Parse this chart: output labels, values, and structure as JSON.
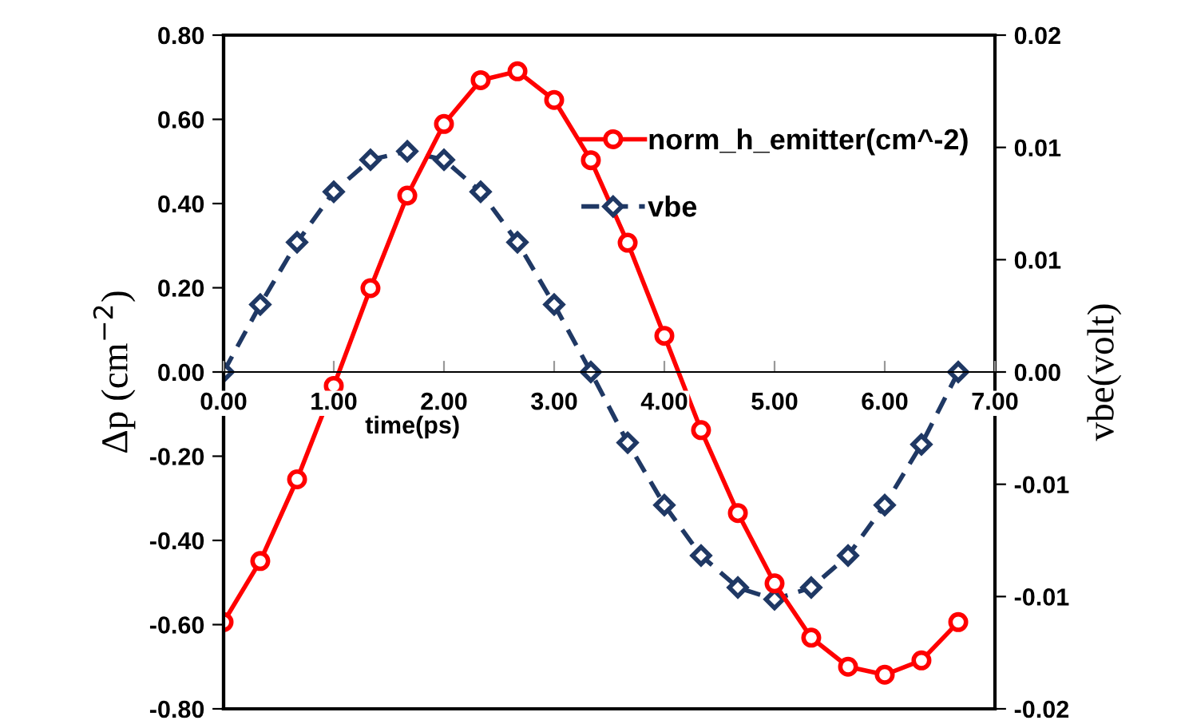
{
  "chart_data": {
    "type": "line",
    "xlabel": "time(ps)",
    "ylabel": "Δp (cm$^{−2}$)",
    "y2label": "vbe(volt)",
    "xlim": [
      0,
      7
    ],
    "xticks": [
      {
        "value": 0,
        "label": "0.00"
      },
      {
        "value": 1,
        "label": "1.00"
      },
      {
        "value": 2,
        "label": "2.00"
      },
      {
        "value": 3,
        "label": "3.00"
      },
      {
        "value": 4,
        "label": "4.00"
      },
      {
        "value": 5,
        "label": "5.00"
      },
      {
        "value": 6,
        "label": "6.00"
      },
      {
        "value": 7,
        "label": "7.00"
      }
    ],
    "ylim": [
      -0.8,
      0.8
    ],
    "yticks": [
      {
        "value": 0.8,
        "label": "0.80"
      },
      {
        "value": 0.6,
        "label": "0.60"
      },
      {
        "value": 0.4,
        "label": "0.40"
      },
      {
        "value": 0.2,
        "label": "0.20"
      },
      {
        "value": 0,
        "label": "0.00"
      },
      {
        "value": -0.2,
        "label": "-0.20"
      },
      {
        "value": -0.4,
        "label": "-0.40"
      },
      {
        "value": -0.6,
        "label": "-0.60"
      },
      {
        "value": -0.8,
        "label": "-0.80"
      }
    ],
    "y2lim": [
      -0.02,
      0.02
    ],
    "y2ticks": [
      {
        "value": 0.02,
        "label": "0.02"
      },
      {
        "value": 0.013333,
        "label": "0.01"
      },
      {
        "value": 0.006667,
        "label": "0.01"
      },
      {
        "value": 0,
        "label": "0.00"
      },
      {
        "value": -0.006667,
        "label": "-0.01"
      },
      {
        "value": -0.013333,
        "label": "-0.01"
      },
      {
        "value": -0.02,
        "label": "-0.02"
      }
    ],
    "x": [
      0,
      0.333,
      0.667,
      1,
      1.333,
      1.667,
      2,
      2.333,
      2.667,
      3,
      3.333,
      3.667,
      4,
      4.333,
      4.667,
      5,
      5.333,
      5.667,
      6,
      6.333,
      6.667
    ],
    "grid": false,
    "legend": "top right",
    "series": [
      {
        "name": "norm_h_emitter(cm^-2)",
        "color": "#ff0000",
        "marker": "circle",
        "line_style": "solid",
        "values": [
          -0.594,
          -0.449,
          -0.255,
          -0.033,
          0.199,
          0.419,
          0.589,
          0.693,
          0.714,
          0.646,
          0.503,
          0.307,
          0.086,
          -0.138,
          -0.335,
          -0.502,
          -0.631,
          -0.7,
          -0.719,
          -0.685,
          -0.594
        ]
      },
      {
        "name": "vbe",
        "color": "#1f3864",
        "marker": "diamond",
        "line_style": "dashed",
        "axis": "y2",
        "values": [
          0,
          0.004,
          0.0077,
          0.0107,
          0.0126,
          0.0131,
          0.0126,
          0.0107,
          0.0077,
          0.004,
          0,
          -0.0042,
          -0.0079,
          -0.0109,
          -0.0128,
          -0.0135,
          -0.0128,
          -0.0109,
          -0.0079,
          -0.0043,
          0
        ]
      }
    ]
  }
}
